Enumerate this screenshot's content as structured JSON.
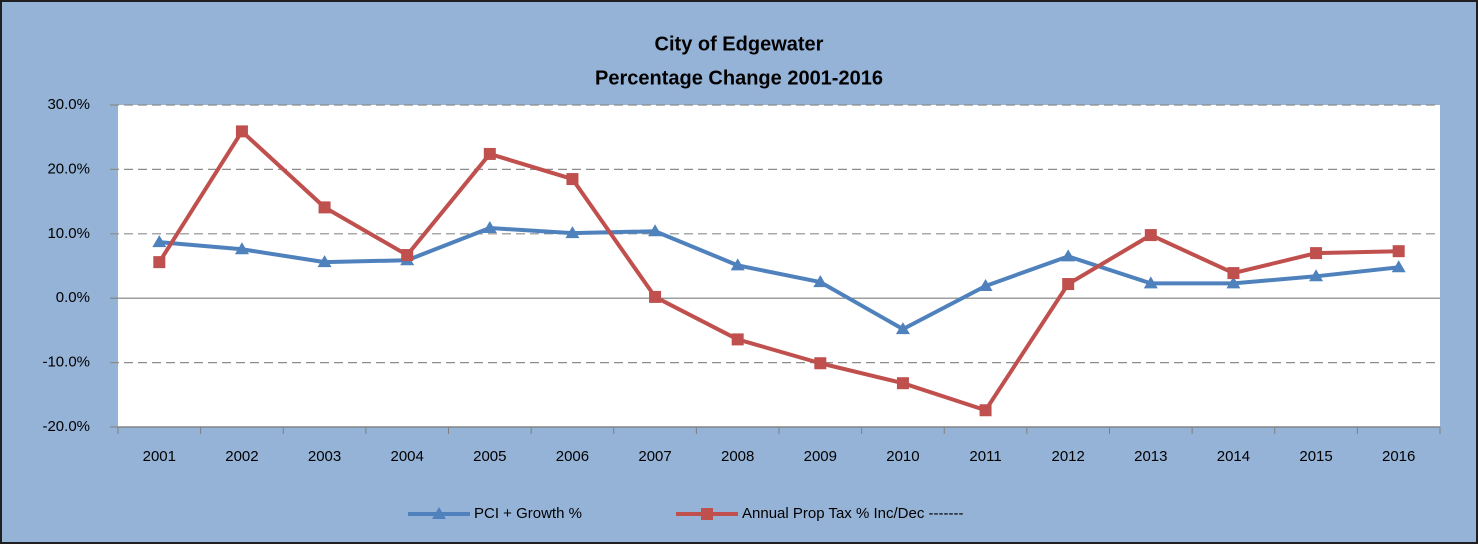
{
  "chart_data": {
    "type": "line",
    "title": "City of Edgewater",
    "subtitle": "Percentage Change 2001-2016",
    "categories": [
      "2001",
      "2002",
      "2003",
      "2004",
      "2005",
      "2006",
      "2007",
      "2008",
      "2009",
      "2010",
      "2011",
      "2012",
      "2013",
      "2014",
      "2015",
      "2016"
    ],
    "series": [
      {
        "name": "PCI + Growth %",
        "color": "#4f81bd",
        "marker": "triangle",
        "values": [
          8.7,
          7.6,
          5.6,
          5.9,
          10.9,
          10.1,
          10.4,
          5.1,
          2.5,
          -4.8,
          1.9,
          6.5,
          2.3,
          2.3,
          3.4,
          4.8
        ]
      },
      {
        "name": "Annual Prop Tax % Inc/Dec -------",
        "color": "#c0504d",
        "marker": "square",
        "values": [
          5.6,
          25.9,
          14.1,
          6.7,
          22.4,
          18.5,
          0.2,
          -6.4,
          -10.1,
          -13.2,
          -17.4,
          2.2,
          9.8,
          3.9,
          7.0,
          7.3
        ]
      }
    ],
    "ylim": [
      -20,
      30
    ],
    "yticks": [
      {
        "value": -20,
        "label": "-20.0%"
      },
      {
        "value": -10,
        "label": "-10.0%"
      },
      {
        "value": 0,
        "label": "0.0%"
      },
      {
        "value": 10,
        "label": "10.0%"
      },
      {
        "value": 20,
        "label": "20.0%"
      },
      {
        "value": 30,
        "label": "30.0%"
      }
    ],
    "grid": true,
    "legend": "bottom"
  }
}
